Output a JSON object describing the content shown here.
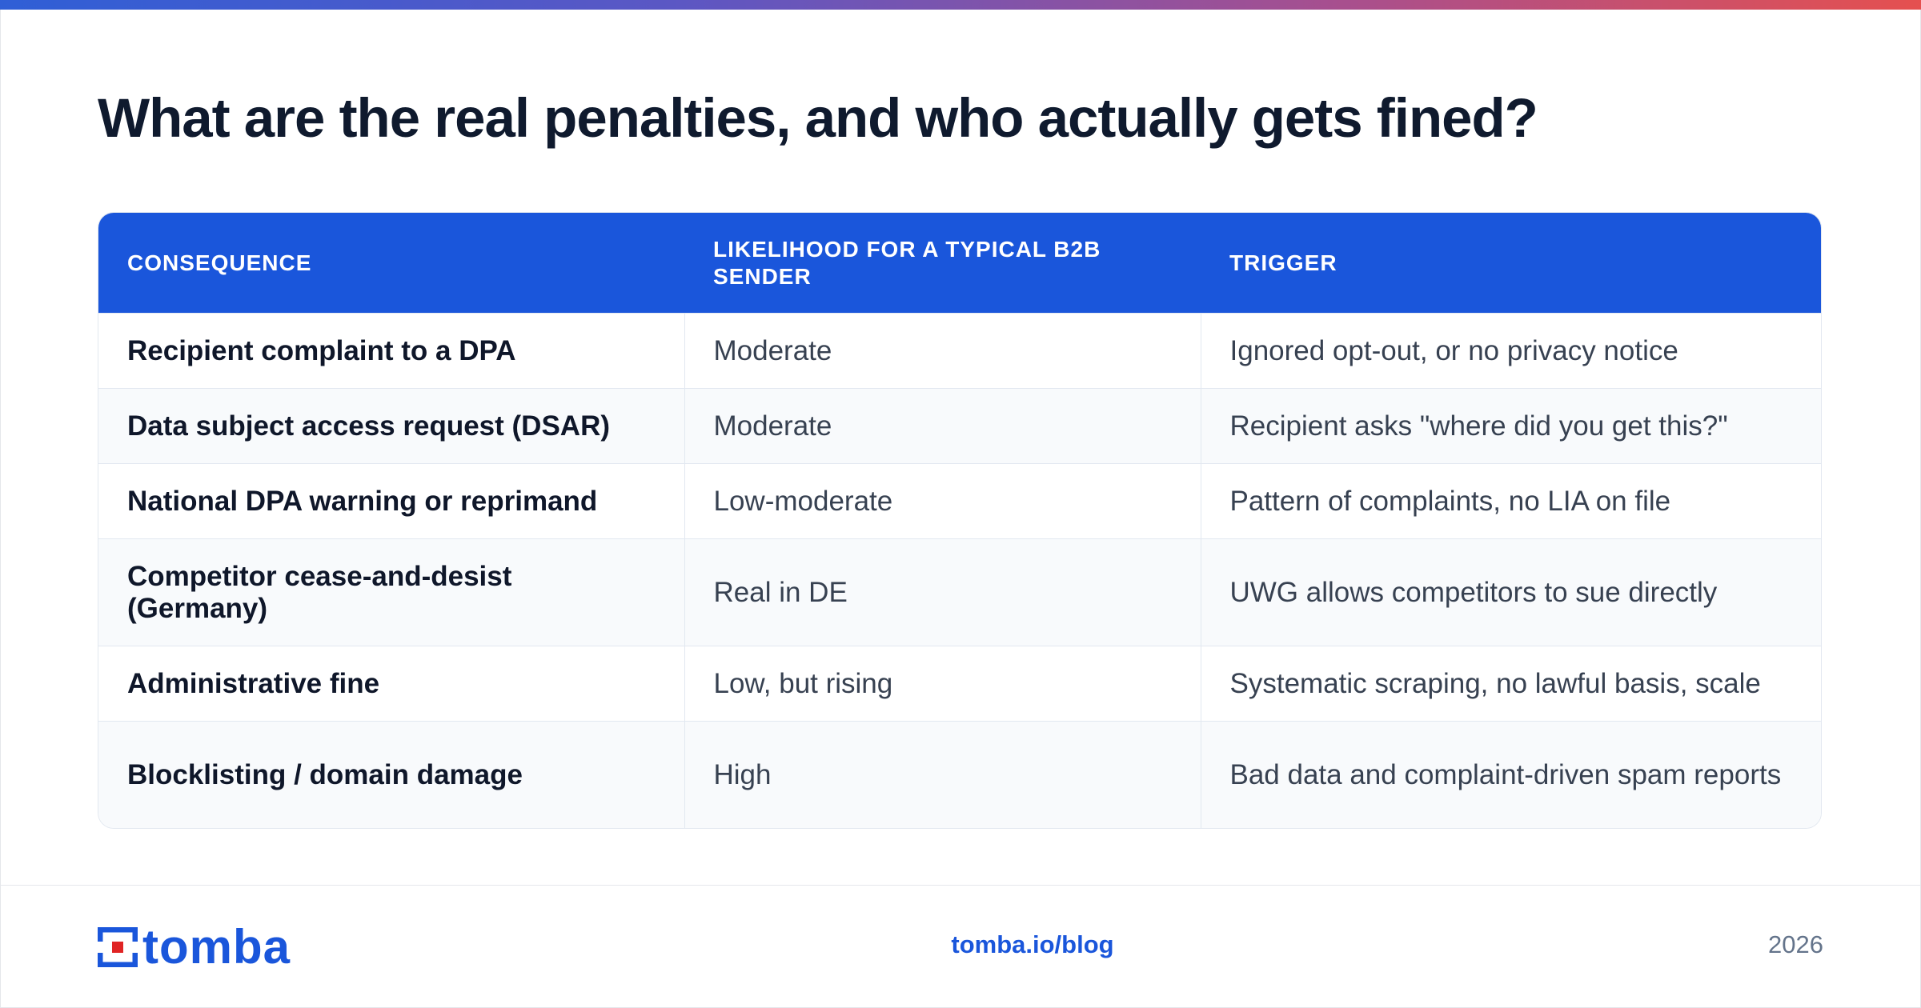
{
  "header": {
    "title": "What are the real penalties, and who actually gets fined?"
  },
  "table": {
    "columns": [
      "CONSEQUENCE",
      "LIKELIHOOD FOR A TYPICAL B2B SENDER",
      "TRIGGER"
    ],
    "rows": [
      [
        "Recipient complaint to a DPA",
        "Moderate",
        "Ignored opt-out, or no privacy notice"
      ],
      [
        "Data subject access request (DSAR)",
        "Moderate",
        "Recipient asks \"where did you get this?\""
      ],
      [
        "National DPA warning or reprimand",
        "Low-moderate",
        "Pattern of complaints, no LIA on file"
      ],
      [
        "Competitor cease-and-desist (Germany)",
        "Real in DE",
        "UWG allows competitors to sue directly"
      ],
      [
        "Administrative fine",
        "Low, but rising",
        "Systematic scraping, no lawful basis, scale"
      ],
      [
        "Blocklisting / domain damage",
        "High",
        "Bad data and complaint-driven spam reports"
      ]
    ]
  },
  "footer": {
    "logo_text": "tomba",
    "url": "tomba.io/blog",
    "year": "2026"
  },
  "colors": {
    "accent": "#1a56db",
    "logo_red": "#e02424",
    "gradient_start": "#2f5fd6",
    "gradient_end": "#e5504f"
  },
  "icons": {
    "logo": "tomba-logo-mark"
  }
}
